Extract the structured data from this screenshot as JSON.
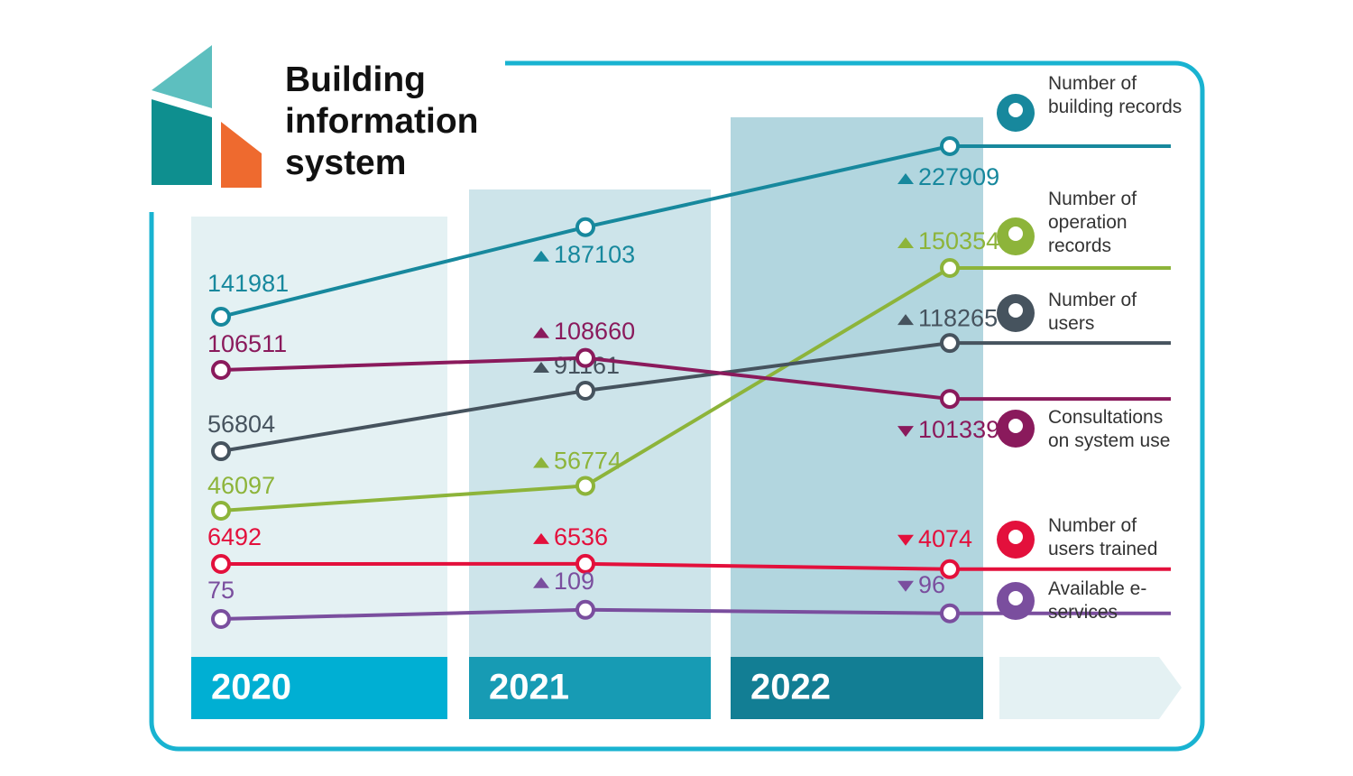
{
  "title": "Building information system",
  "chart_data": {
    "type": "line",
    "categories": [
      "2020",
      "2021",
      "2022"
    ],
    "series": [
      {
        "name": "Number of building records",
        "color": "#17889d",
        "values": [
          141981,
          187103,
          227909
        ]
      },
      {
        "name": "Number of operation records",
        "color": "#8db43a",
        "values": [
          46097,
          56774,
          150354
        ]
      },
      {
        "name": "Number of users",
        "color": "#46535e",
        "values": [
          56804,
          91161,
          118265
        ]
      },
      {
        "name": "Consultations on system use",
        "color": "#8a1a5c",
        "values": [
          106511,
          108660,
          101339
        ]
      },
      {
        "name": "Number of users trained",
        "color": "#e3103c",
        "values": [
          6492,
          6536,
          4074
        ]
      },
      {
        "name": "Available e-services",
        "color": "#7a4e9e",
        "values": [
          75,
          109,
          96
        ]
      }
    ]
  }
}
